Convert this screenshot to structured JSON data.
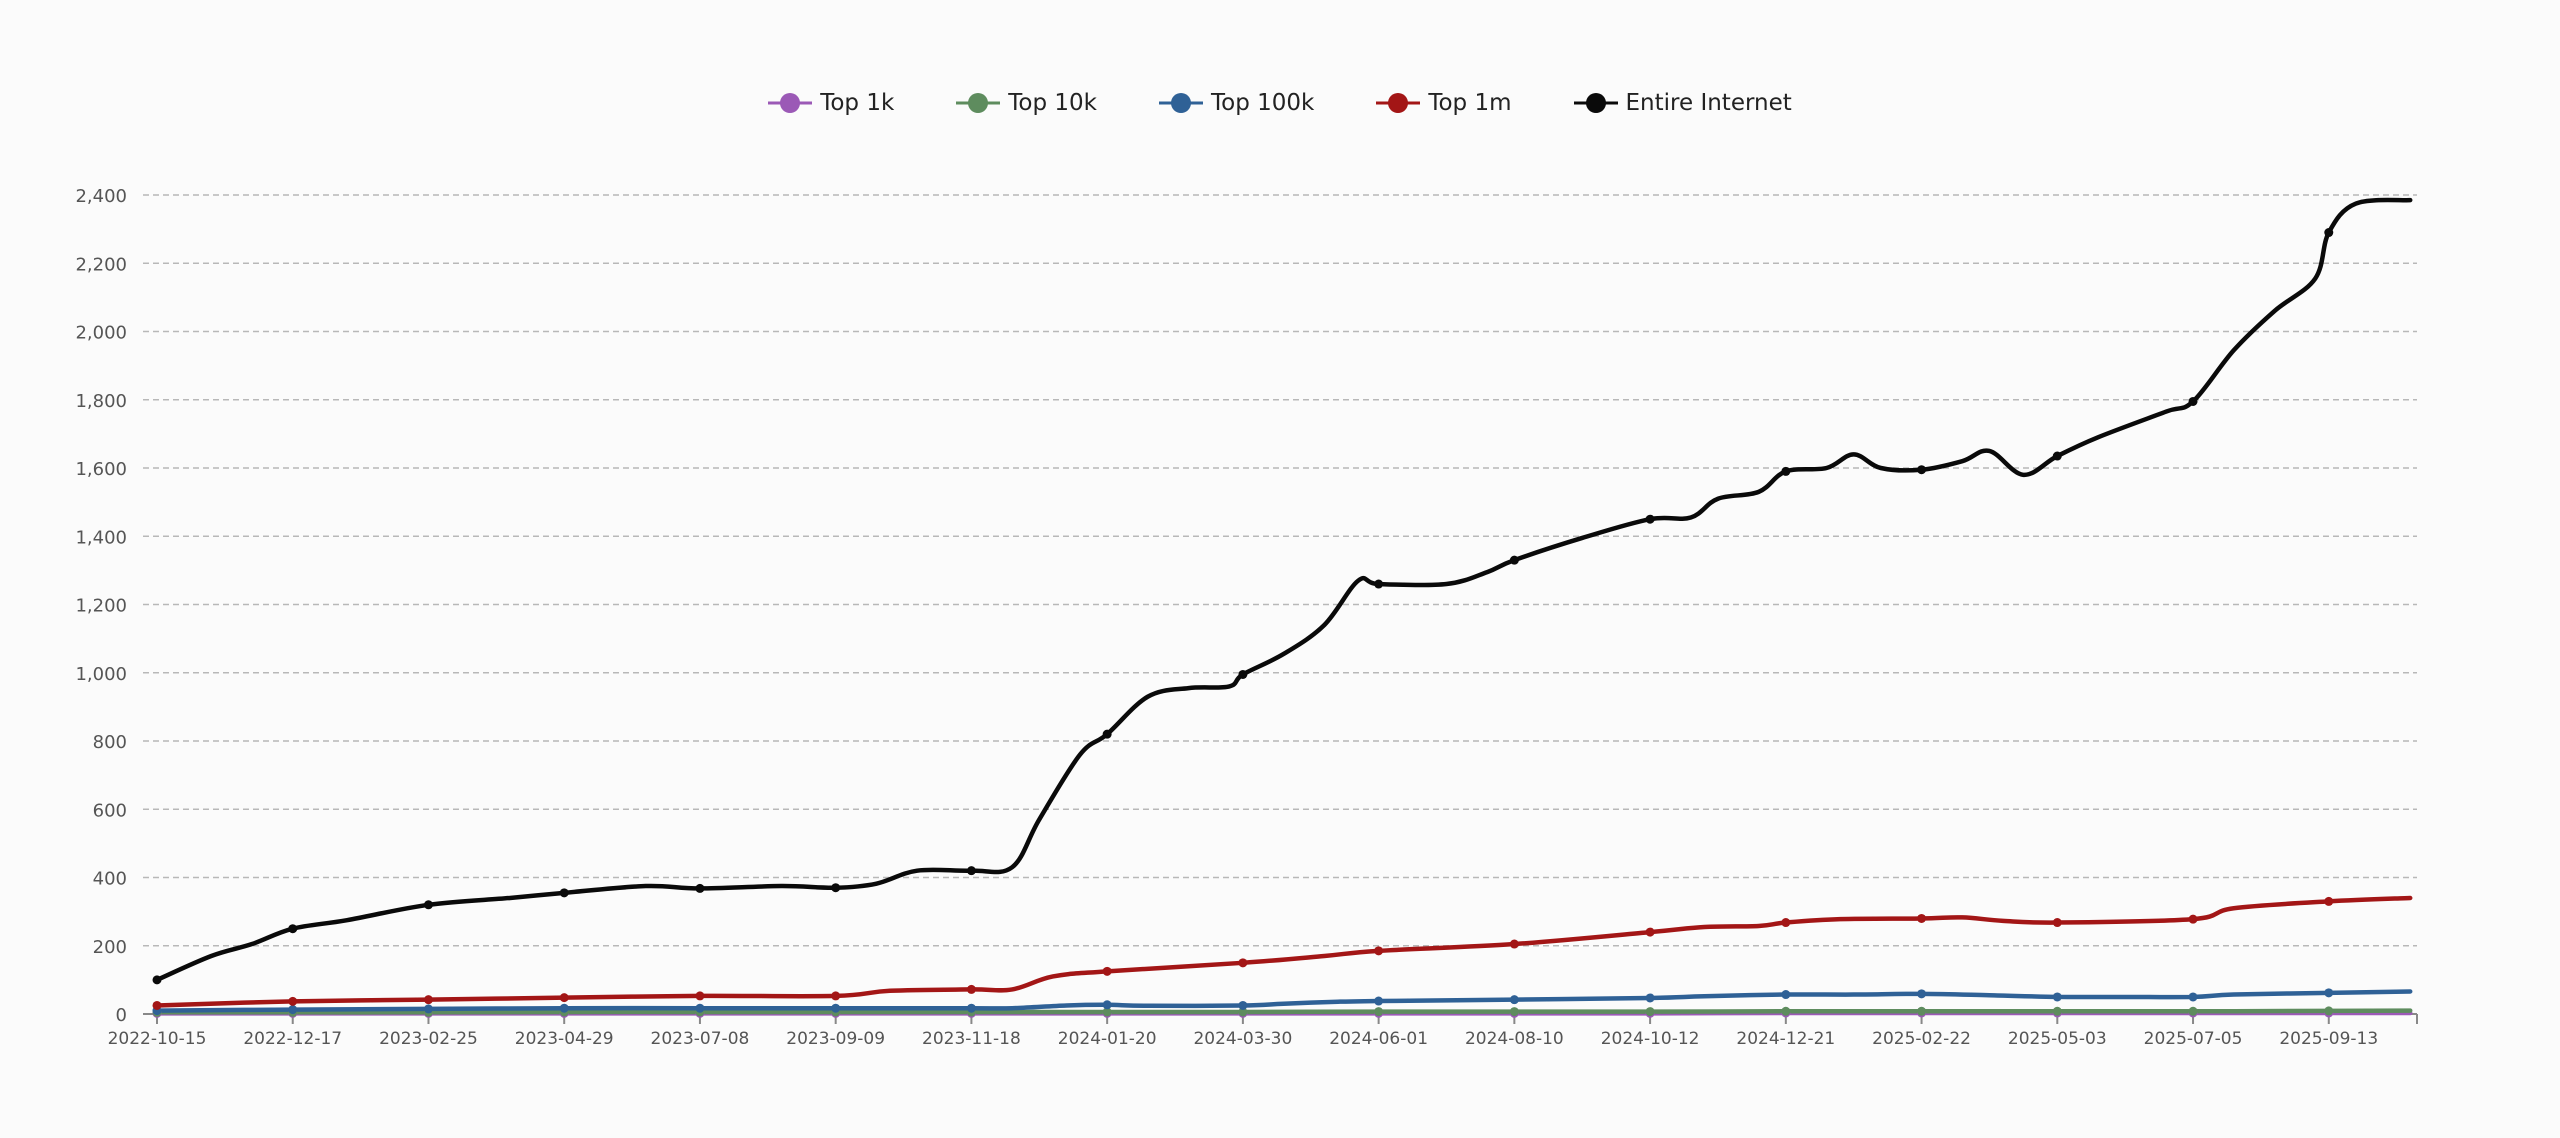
{
  "chart_data": {
    "type": "line",
    "title": "",
    "xlabel": "",
    "ylabel": "",
    "ylim": [
      0,
      2400
    ],
    "y_ticks": [
      "0",
      "200",
      "400",
      "600",
      "800",
      "1,000",
      "1,200",
      "1,400",
      "1,600",
      "1,800",
      "2,000",
      "2,200",
      "2,400"
    ],
    "x_tick_labels": [
      "2022-10-15",
      "2022-12-17",
      "2023-02-25",
      "2023-04-29",
      "2023-07-08",
      "2023-09-09",
      "2023-11-18",
      "2024-01-20",
      "2024-03-30",
      "2024-06-01",
      "2024-08-10",
      "2024-10-12",
      "2024-12-21",
      "2025-02-22",
      "2025-05-03",
      "2025-07-05",
      "2025-09-13"
    ],
    "x_index_range": [
      0,
      16.65
    ],
    "grid": true,
    "legend_position": "top-center",
    "series": [
      {
        "name": "Top 1k",
        "color": "#9b59b6",
        "x": [
          0,
          1,
          2,
          3,
          4,
          5,
          6,
          7,
          8,
          9,
          10,
          11,
          12,
          13,
          14,
          15,
          16,
          16.6
        ],
        "values": [
          2,
          2,
          2,
          2,
          2,
          2,
          2,
          2,
          2,
          2,
          2,
          2,
          3,
          3,
          3,
          3,
          3,
          3
        ]
      },
      {
        "name": "Top 10k",
        "color": "#5e8c5e",
        "x": [
          0,
          1,
          2,
          3,
          4,
          5,
          6,
          7,
          8,
          9,
          10,
          11,
          12,
          13,
          14,
          15,
          16,
          16.6
        ],
        "values": [
          5,
          5,
          5,
          6,
          6,
          6,
          6,
          6,
          6,
          7,
          7,
          7,
          8,
          8,
          8,
          8,
          9,
          10
        ]
      },
      {
        "name": "Top 100k",
        "color": "#2f6196",
        "x": [
          0,
          1,
          2,
          3,
          4,
          5,
          6,
          6.3,
          6.7,
          7,
          7.3,
          8,
          8.3,
          8.7,
          9,
          10,
          11,
          11.4,
          12,
          12.5,
          13,
          13.5,
          14,
          14.5,
          15,
          15.3,
          16,
          16.6
        ],
        "values": [
          10,
          13,
          15,
          17,
          17,
          17,
          17,
          17,
          25,
          27,
          24,
          25,
          30,
          36,
          38,
          42,
          47,
          52,
          57,
          57,
          59,
          55,
          50,
          50,
          50,
          57,
          62,
          66
        ]
      },
      {
        "name": "Top 1m",
        "color": "#a31616",
        "x": [
          0,
          1,
          2,
          3,
          4,
          5,
          5.4,
          6,
          6.3,
          6.6,
          7,
          8,
          8.6,
          9,
          10,
          11,
          11.4,
          11.8,
          12,
          12.4,
          13,
          13.3,
          13.6,
          14,
          15,
          15.3,
          16,
          16.6
        ],
        "values": [
          25,
          37,
          42,
          48,
          53,
          53,
          68,
          72,
          72,
          110,
          125,
          150,
          170,
          185,
          205,
          240,
          255,
          258,
          268,
          278,
          280,
          283,
          273,
          268,
          278,
          310,
          330,
          340
        ]
      },
      {
        "name": "Entire Internet",
        "color": "#0a0a0a",
        "x": [
          0,
          0.4,
          0.7,
          1,
          1.4,
          2,
          2.6,
          3,
          3.6,
          4,
          4.6,
          5,
          5.3,
          5.6,
          6,
          6.3,
          6.5,
          6.8,
          7,
          7.3,
          7.6,
          7.9,
          8,
          8.3,
          8.6,
          8.85,
          9,
          9.5,
          9.8,
          10,
          10.5,
          11,
          11.3,
          11.5,
          11.8,
          12,
          12.3,
          12.5,
          12.7,
          13,
          13.3,
          13.5,
          13.75,
          14,
          14.3,
          14.8,
          15,
          15.3,
          15.6,
          15.9,
          16,
          16.2,
          16.6
        ],
        "values": [
          100,
          170,
          205,
          250,
          275,
          320,
          340,
          355,
          375,
          368,
          375,
          370,
          382,
          420,
          420,
          430,
          570,
          760,
          820,
          930,
          955,
          960,
          995,
          1055,
          1140,
          1270,
          1260,
          1260,
          1295,
          1330,
          1395,
          1450,
          1455,
          1510,
          1530,
          1590,
          1600,
          1640,
          1600,
          1595,
          1620,
          1650,
          1580,
          1635,
          1690,
          1765,
          1795,
          1945,
          2060,
          2155,
          2290,
          2375,
          2385
        ]
      }
    ]
  }
}
